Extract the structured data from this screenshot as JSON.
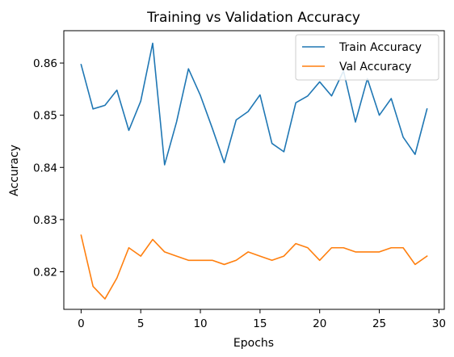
{
  "chart_data": {
    "type": "line",
    "title": "Training vs Validation Accuracy",
    "xlabel": "Epochs",
    "ylabel": "Accuracy",
    "xlim": [
      -1.45,
      30.45
    ],
    "ylim": [
      0.8128,
      0.8662
    ],
    "x_ticks": [
      0,
      5,
      10,
      15,
      20,
      25,
      30
    ],
    "y_ticks": [
      0.82,
      0.83,
      0.84,
      0.85,
      0.86
    ],
    "y_tick_labels": [
      "0.82",
      "0.83",
      "0.84",
      "0.85",
      "0.86"
    ],
    "grid": false,
    "legend_position": "top-right",
    "x": [
      0,
      1,
      2,
      3,
      4,
      5,
      6,
      7,
      8,
      9,
      10,
      11,
      12,
      13,
      14,
      15,
      16,
      17,
      18,
      19,
      20,
      21,
      22,
      23,
      24,
      25,
      26,
      27,
      28,
      29
    ],
    "series": [
      {
        "name": "Train Accuracy",
        "color": "#1f77b4",
        "values": [
          0.8597,
          0.8512,
          0.8519,
          0.8548,
          0.8471,
          0.8527,
          0.8638,
          0.8405,
          0.8487,
          0.8589,
          0.8538,
          0.8475,
          0.8409,
          0.8491,
          0.8507,
          0.8539,
          0.8446,
          0.843,
          0.8524,
          0.8537,
          0.8564,
          0.8537,
          0.8585,
          0.8487,
          0.857,
          0.85,
          0.8532,
          0.8458,
          0.8425,
          0.8512
        ]
      },
      {
        "name": "Val Accuracy",
        "color": "#ff7f0e",
        "values": [
          0.827,
          0.8172,
          0.8148,
          0.8188,
          0.8246,
          0.823,
          0.8262,
          0.8238,
          0.823,
          0.8222,
          0.8222,
          0.8222,
          0.8214,
          0.8222,
          0.8238,
          0.823,
          0.8222,
          0.823,
          0.8254,
          0.8246,
          0.8222,
          0.8246,
          0.8246,
          0.8238,
          0.8238,
          0.8238,
          0.8246,
          0.8246,
          0.8214,
          0.823
        ]
      }
    ]
  }
}
